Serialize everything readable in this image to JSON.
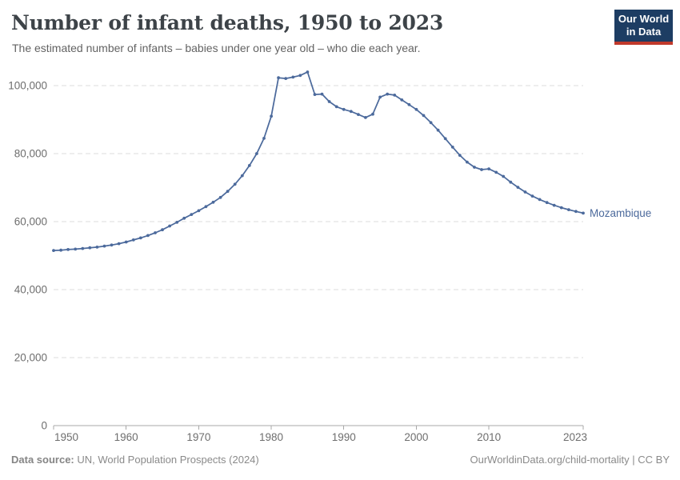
{
  "header": {
    "title": "Number of infant deaths, 1950 to 2023",
    "subtitle": "The estimated number of infants – babies under one year old – who die each year."
  },
  "logo": {
    "line1": "Our World",
    "line2": "in Data",
    "bg_color": "#1d3d63",
    "accent_color": "#c0392b"
  },
  "footer": {
    "source_label": "Data source:",
    "source_text": " UN, World Population Prospects (2024)",
    "credit": "OurWorldinData.org/child-mortality | CC BY"
  },
  "chart_data": {
    "type": "line",
    "title": "Number of infant deaths, 1950 to 2023",
    "subtitle": "The estimated number of infants – babies under one year old – who die each year.",
    "xlabel": "",
    "ylabel": "",
    "xlim": [
      1950,
      2023
    ],
    "ylim": [
      0,
      100000
    ],
    "grid": "dashed-horizontal",
    "legend_position": "end-of-line-label",
    "x_tick_values": [
      1950,
      1960,
      1970,
      1980,
      1990,
      2000,
      2010,
      2023
    ],
    "x_tick_labels": [
      "1950",
      "1960",
      "1970",
      "1980",
      "1990",
      "2000",
      "2010",
      "2023"
    ],
    "y_tick_values": [
      0,
      20000,
      40000,
      60000,
      80000,
      100000
    ],
    "y_tick_labels": [
      "0",
      "20,000",
      "40,000",
      "60,000",
      "80,000",
      "100,000"
    ],
    "series": [
      {
        "name": "Mozambique",
        "color": "#4c6a9c",
        "years": [
          1950,
          1951,
          1952,
          1953,
          1954,
          1955,
          1956,
          1957,
          1958,
          1959,
          1960,
          1961,
          1962,
          1963,
          1964,
          1965,
          1966,
          1967,
          1968,
          1969,
          1970,
          1971,
          1972,
          1973,
          1974,
          1975,
          1976,
          1977,
          1978,
          1979,
          1980,
          1981,
          1982,
          1983,
          1984,
          1985,
          1986,
          1987,
          1988,
          1989,
          1990,
          1991,
          1992,
          1993,
          1994,
          1995,
          1996,
          1997,
          1998,
          1999,
          2000,
          2001,
          2002,
          2003,
          2004,
          2005,
          2006,
          2007,
          2008,
          2009,
          2010,
          2011,
          2012,
          2013,
          2014,
          2015,
          2016,
          2017,
          2018,
          2019,
          2020,
          2021,
          2022,
          2023
        ],
        "values": [
          51500,
          51600,
          51800,
          51900,
          52100,
          52300,
          52500,
          52800,
          53100,
          53500,
          54000,
          54600,
          55200,
          55900,
          56700,
          57600,
          58700,
          59800,
          61000,
          62100,
          63200,
          64400,
          65700,
          67100,
          68900,
          71000,
          73500,
          76500,
          80000,
          84500,
          91000,
          102300,
          102100,
          102500,
          103000,
          104000,
          97400,
          97500,
          95300,
          93800,
          93000,
          92400,
          91500,
          90600,
          91600,
          96600,
          97500,
          97200,
          95800,
          94400,
          93000,
          91200,
          89100,
          86900,
          84400,
          81900,
          79500,
          77500,
          76000,
          75300,
          75500,
          74500,
          73300,
          71600,
          70100,
          68700,
          67500,
          66500,
          65600,
          64800,
          64100,
          63500,
          63000,
          62500
        ]
      }
    ],
    "end_label": "Mozambique"
  },
  "style": {
    "line_color": "#4c6a9c",
    "gridline_color": "#dcdcdc",
    "axis_color": "#a8a8a8",
    "tick_label_color": "#6e6e6e",
    "title_color": "#3d4348",
    "subtitle_color": "#636363",
    "footer_color": "#8a8a8a"
  }
}
